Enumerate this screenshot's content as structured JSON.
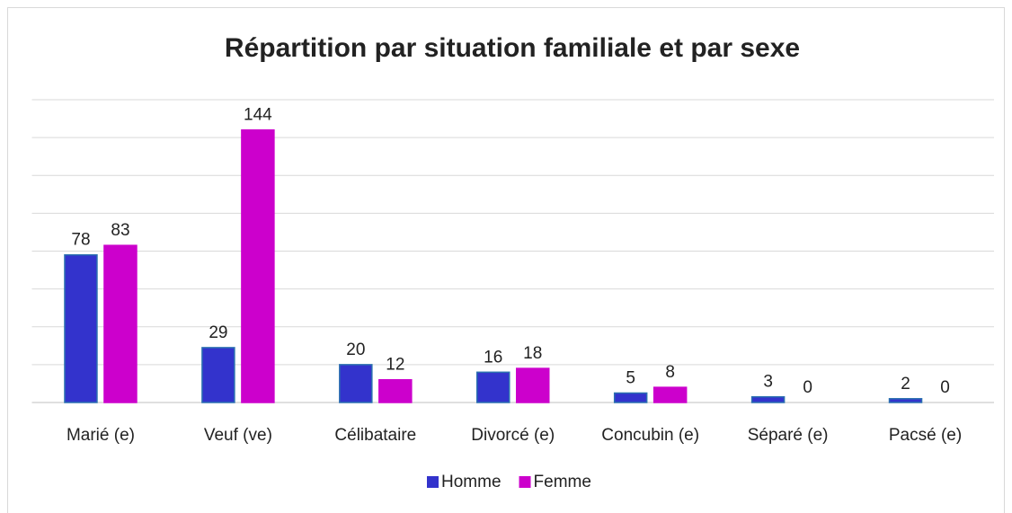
{
  "chart_data": {
    "type": "bar",
    "title": "Répartition par situation familiale et par sexe",
    "categories": [
      "Marié (e)",
      "Veuf (ve)",
      "Célibataire",
      "Divorcé (e)",
      "Concubin (e)",
      "Séparé (e)",
      "Pacsé (e)"
    ],
    "series": [
      {
        "name": "Homme",
        "color": "#3333cc",
        "values": [
          78,
          29,
          20,
          16,
          5,
          3,
          2
        ]
      },
      {
        "name": "Femme",
        "color": "#cc00cc",
        "values": [
          83,
          144,
          12,
          18,
          8,
          0,
          0
        ]
      }
    ],
    "ylim": [
      0,
      160
    ],
    "yticks": [
      0,
      20,
      40,
      60,
      80,
      100,
      120,
      140,
      160
    ],
    "show_ytick_labels": false,
    "grid": true,
    "legend": "bottom"
  }
}
